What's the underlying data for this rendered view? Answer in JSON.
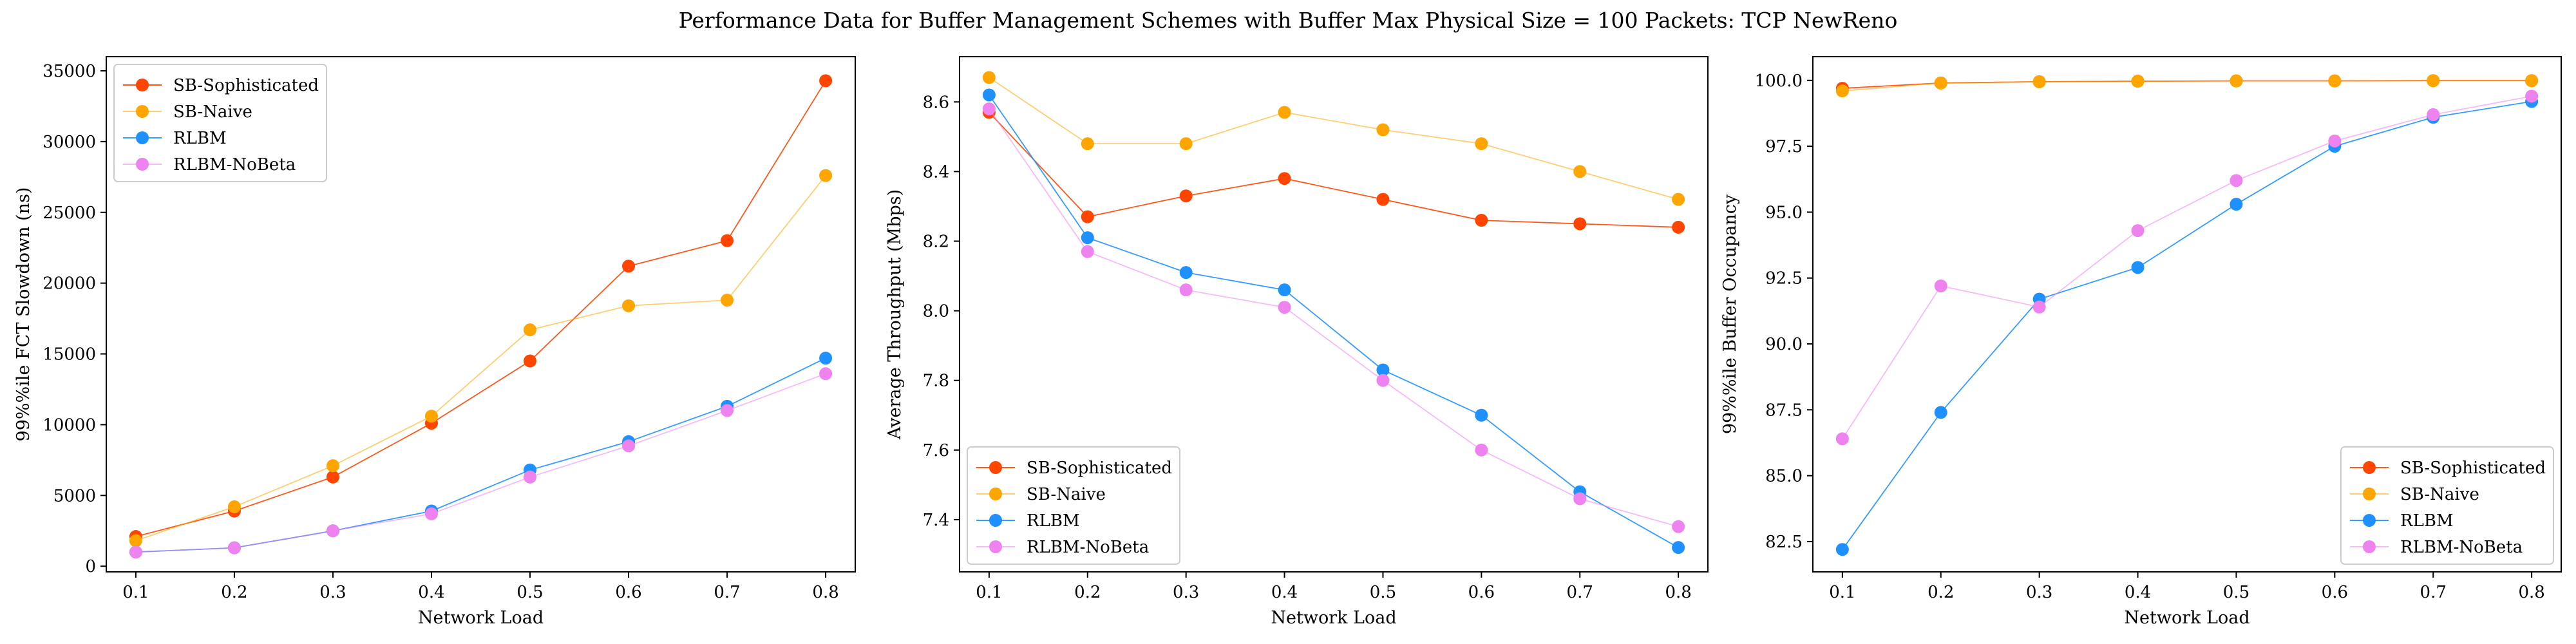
{
  "figure": {
    "title": "Performance Data for Buffer Management Schemes with Buffer Max Physical Size = 100 Packets: TCP NewReno"
  },
  "series_styles": [
    {
      "name": "SB-Sophisticated",
      "color": "#FF4500"
    },
    {
      "name": "SB-Naive",
      "color": "#FFA500"
    },
    {
      "name": "RLBM",
      "color": "#1E90FF"
    },
    {
      "name": "RLBM-NoBeta",
      "color": "#EE82EE"
    }
  ],
  "chart_data": [
    {
      "type": "line",
      "title": "",
      "xlabel": "Network Load",
      "ylabel": "99%%ile FCT Slowdown (ns)",
      "x": [
        0.1,
        0.2,
        0.3,
        0.4,
        0.5,
        0.6,
        0.7,
        0.8
      ],
      "xlim": [
        0.07,
        0.83
      ],
      "ylim": [
        -400,
        36000
      ],
      "xticks": [
        "0.1",
        "0.2",
        "0.3",
        "0.4",
        "0.5",
        "0.6",
        "0.7",
        "0.8"
      ],
      "yticks": [
        0,
        5000,
        10000,
        15000,
        20000,
        25000,
        30000,
        35000
      ],
      "legend": "top-left",
      "grid": false,
      "series": [
        {
          "name": "SB-Sophisticated",
          "values": [
            2100,
            3900,
            6300,
            10100,
            14500,
            21200,
            23000,
            34300
          ]
        },
        {
          "name": "SB-Naive",
          "values": [
            1800,
            4200,
            7100,
            10600,
            16700,
            18400,
            18800,
            27600
          ]
        },
        {
          "name": "RLBM",
          "values": [
            1000,
            1300,
            2500,
            3900,
            6800,
            8800,
            11300,
            14700
          ]
        },
        {
          "name": "RLBM-NoBeta",
          "values": [
            1000,
            1300,
            2500,
            3700,
            6300,
            8500,
            11000,
            13600
          ]
        }
      ]
    },
    {
      "type": "line",
      "title": "",
      "xlabel": "Network Load",
      "ylabel": "Average Throughput (Mbps)",
      "x": [
        0.1,
        0.2,
        0.3,
        0.4,
        0.5,
        0.6,
        0.7,
        0.8
      ],
      "xlim": [
        0.07,
        0.83
      ],
      "ylim": [
        7.25,
        8.73
      ],
      "xticks": [
        "0.1",
        "0.2",
        "0.3",
        "0.4",
        "0.5",
        "0.6",
        "0.7",
        "0.8"
      ],
      "yticks": [
        7.4,
        7.6,
        7.8,
        8.0,
        8.2,
        8.4,
        8.6
      ],
      "ytick_labels": [
        "7.4",
        "7.6",
        "7.8",
        "8.0",
        "8.2",
        "8.4",
        "8.6"
      ],
      "legend": "bottom-left",
      "grid": false,
      "series": [
        {
          "name": "SB-Sophisticated",
          "values": [
            8.57,
            8.27,
            8.33,
            8.38,
            8.32,
            8.26,
            8.25,
            8.24
          ]
        },
        {
          "name": "SB-Naive",
          "values": [
            8.67,
            8.48,
            8.48,
            8.57,
            8.52,
            8.48,
            8.4,
            8.32
          ]
        },
        {
          "name": "RLBM",
          "values": [
            8.62,
            8.21,
            8.11,
            8.06,
            7.83,
            7.7,
            7.48,
            7.32
          ]
        },
        {
          "name": "RLBM-NoBeta",
          "values": [
            8.58,
            8.17,
            8.06,
            8.01,
            7.8,
            7.6,
            7.46,
            7.38
          ]
        }
      ]
    },
    {
      "type": "line",
      "title": "",
      "xlabel": "Network Load",
      "ylabel": "99%%ile Buffer Occupancy",
      "x": [
        0.1,
        0.2,
        0.3,
        0.4,
        0.5,
        0.6,
        0.7,
        0.8
      ],
      "xlim": [
        0.07,
        0.83
      ],
      "ylim": [
        81.35,
        100.9
      ],
      "xticks": [
        "0.1",
        "0.2",
        "0.3",
        "0.4",
        "0.5",
        "0.6",
        "0.7",
        "0.8"
      ],
      "yticks": [
        82.5,
        85.0,
        87.5,
        90.0,
        92.5,
        95.0,
        97.5,
        100.0
      ],
      "ytick_labels": [
        "82.5",
        "85.0",
        "87.5",
        "90.0",
        "92.5",
        "95.0",
        "97.5",
        "100.0"
      ],
      "legend": "bottom-right",
      "grid": false,
      "series": [
        {
          "name": "SB-Sophisticated",
          "values": [
            99.7,
            99.9,
            99.95,
            99.97,
            99.98,
            99.98,
            99.99,
            99.99
          ]
        },
        {
          "name": "SB-Naive",
          "values": [
            99.6,
            99.9,
            99.95,
            99.97,
            99.98,
            99.98,
            99.99,
            99.99
          ]
        },
        {
          "name": "RLBM",
          "values": [
            82.2,
            87.4,
            91.7,
            92.9,
            95.3,
            97.5,
            98.6,
            99.2
          ]
        },
        {
          "name": "RLBM-NoBeta",
          "values": [
            86.4,
            92.2,
            91.4,
            94.3,
            96.2,
            97.7,
            98.7,
            99.4
          ]
        }
      ]
    }
  ]
}
